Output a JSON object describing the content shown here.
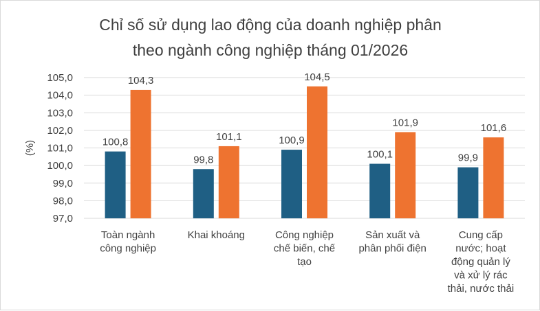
{
  "chart_data": {
    "type": "bar",
    "title_lines": [
      "Chỉ số sử dụng lao động của doanh nghiệp phân",
      "theo ngành công nghiệp tháng 01/2026"
    ],
    "ylabel": "(%)",
    "ylim": [
      97.0,
      105.0
    ],
    "ytick_step": 1.0,
    "yticks": [
      "97,0",
      "98,0",
      "99,0",
      "100,0",
      "101,0",
      "102,0",
      "103,0",
      "104,0",
      "105,0"
    ],
    "grid": true,
    "legend": "none",
    "categories": [
      [
        "Toàn ngành",
        "công nghiệp"
      ],
      [
        "Khai khoáng"
      ],
      [
        "Công nghiệp",
        "chế biến, chế",
        "tạo"
      ],
      [
        "Sản xuất và",
        "phân phối điện"
      ],
      [
        "Cung cấp",
        "nước; hoạt",
        "động quản lý",
        "và xử lý rác",
        "thải,  nước thải"
      ]
    ],
    "series": [
      {
        "values": [
          100.8,
          99.8,
          100.9,
          100.1,
          99.9
        ],
        "labels": [
          "100,8",
          "99,8",
          "100,9",
          "100,1",
          "99,9"
        ],
        "color": "#1f5f84"
      },
      {
        "values": [
          104.3,
          101.1,
          104.5,
          101.9,
          101.6
        ],
        "labels": [
          "104,3",
          "101,1",
          "104,5",
          "101,9",
          "101,6"
        ],
        "color": "#ee7330"
      }
    ]
  }
}
